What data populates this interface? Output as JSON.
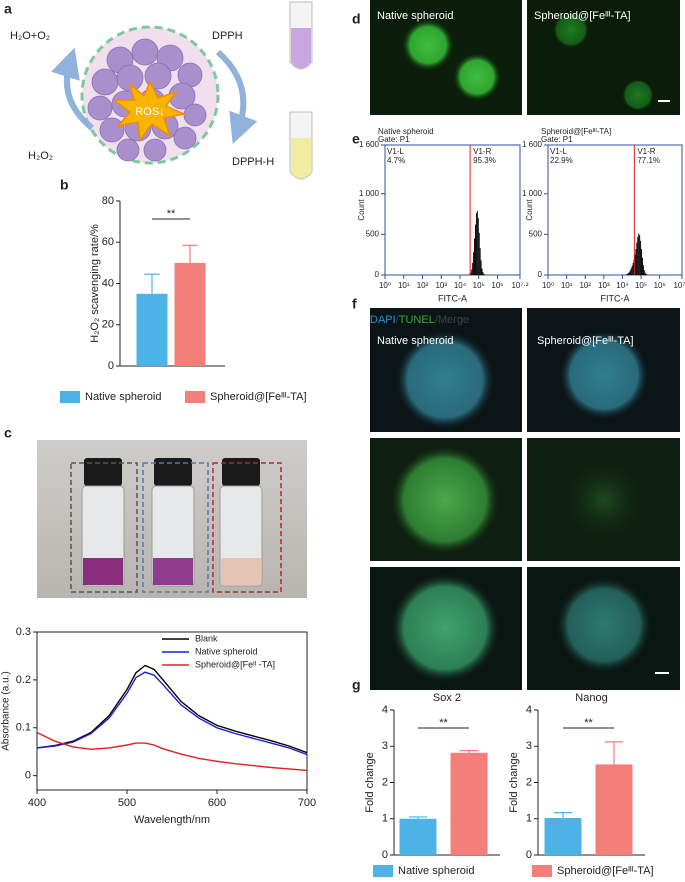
{
  "panel_labels": [
    "a",
    "b",
    "c",
    "d",
    "e",
    "f",
    "g"
  ],
  "panel_a": {
    "products": "H₂O+O₂",
    "reagent": "DPPH",
    "center": "ROS↓",
    "substrate": "H₂O₂",
    "reduced_reagent": "DPPH-H"
  },
  "panel_d": {
    "labels": [
      "Native spheroid",
      "Spheroid@[Feᴵᴵᴵ-TA]"
    ]
  },
  "panel_f": {
    "stain_parts": [
      "DAPI",
      "/",
      "TUNEL",
      "/Merge"
    ],
    "labels": [
      "Native spheroid",
      "Spheroid@[Feᴵᴵᴵ-TA]"
    ]
  },
  "chart_data": [
    {
      "type": "bar",
      "ylabel": "H₂O₂ scavenging rate/%",
      "ylim": [
        0,
        80
      ],
      "yticks": [
        0,
        20,
        40,
        60,
        80
      ],
      "series": [
        {
          "name": "Native spheroid",
          "color": "#4db3e6",
          "values": [
            35
          ],
          "errors": [
            9.5
          ]
        },
        {
          "name": "Spheroid@[Feᴵᴵᴵ-TA]",
          "color": "#f47f7a",
          "values": [
            50
          ],
          "errors": [
            8.5
          ]
        }
      ],
      "annotation": "**"
    },
    {
      "type": "line",
      "xlabel": "Wavelength/nm",
      "ylabel": "Absorbance (a.u.)",
      "xlim": [
        400,
        700
      ],
      "xticks": [
        400,
        500,
        600,
        700
      ],
      "ylim": [
        -0.03,
        0.3
      ],
      "yticks": [
        0,
        0.1,
        0.2,
        0.3
      ],
      "x": [
        400,
        420,
        440,
        460,
        480,
        500,
        510,
        520,
        530,
        540,
        560,
        580,
        600,
        620,
        640,
        660,
        680,
        700
      ],
      "series": [
        {
          "name": "Blank",
          "color": "#000000",
          "values": [
            0.058,
            0.063,
            0.072,
            0.09,
            0.125,
            0.18,
            0.215,
            0.23,
            0.222,
            0.2,
            0.155,
            0.125,
            0.105,
            0.093,
            0.083,
            0.073,
            0.062,
            0.048
          ]
        },
        {
          "name": "Native spheroid",
          "color": "#1f1fd6",
          "values": [
            0.058,
            0.062,
            0.07,
            0.088,
            0.12,
            0.172,
            0.205,
            0.216,
            0.21,
            0.19,
            0.148,
            0.12,
            0.1,
            0.088,
            0.078,
            0.068,
            0.058,
            0.044
          ]
        },
        {
          "name": "Spheroid@[Feᴵᴵ -TA]",
          "color": "#e0201e",
          "values": [
            0.09,
            0.072,
            0.06,
            0.055,
            0.058,
            0.064,
            0.068,
            0.068,
            0.064,
            0.056,
            0.045,
            0.036,
            0.03,
            0.025,
            0.021,
            0.017,
            0.014,
            0.011
          ]
        }
      ]
    },
    {
      "type": "histogram",
      "title": "Native spheroid",
      "subtitle": "Gate: P1",
      "xlabel": "FITC-A",
      "ylabel": "Count",
      "xscale": "log",
      "color": "#000000",
      "xlim": [
        1,
        15848932
      ],
      "xticks": [
        {
          "value": 1,
          "label": "10⁰"
        },
        {
          "value": 10,
          "label": "10¹"
        },
        {
          "value": 100,
          "label": "10²"
        },
        {
          "value": 1000,
          "label": "10³"
        },
        {
          "value": 10000,
          "label": "10⁴"
        },
        {
          "value": 100000,
          "label": "10⁵"
        },
        {
          "value": 1000000,
          "label": "10⁶"
        },
        {
          "value": 15848932,
          "label": "10⁷·²"
        }
      ],
      "ylim": [
        0,
        1600
      ],
      "yticks": [
        0,
        500,
        {
          "value": 1000,
          "label": "1 000"
        },
        {
          "value": 1600,
          "label": "1 600"
        }
      ],
      "gate": 34674,
      "gate_color": "#e0201e",
      "region_names": [
        "V1-L",
        "V1-R"
      ],
      "region_values": [
        4.7,
        95.3
      ],
      "region_value_labels": [
        "4.7%",
        "95.3%"
      ],
      "bins": [
        25119,
        28184,
        31623,
        35481,
        39811,
        44668,
        50119,
        56234,
        63096,
        70795,
        79433,
        89125,
        100000,
        112202,
        125893,
        141254,
        158489,
        177828,
        199526,
        223872,
        251189
      ],
      "values": [
        2,
        5,
        12,
        30,
        70,
        150,
        280,
        450,
        620,
        760,
        790,
        700,
        520,
        330,
        180,
        80,
        35,
        12,
        4,
        1
      ]
    },
    {
      "type": "histogram",
      "title": "Spheroid@[Feᴵᴵᴵ-TA]",
      "subtitle": "Gate: P1",
      "xlabel": "FITC-A",
      "ylabel": "Count",
      "xscale": "log",
      "color": "#000000",
      "xlim": [
        1,
        15848932
      ],
      "xticks": [
        {
          "value": 1,
          "label": "10⁰"
        },
        {
          "value": 10,
          "label": "10¹"
        },
        {
          "value": 100,
          "label": "10²"
        },
        {
          "value": 1000,
          "label": "10³"
        },
        {
          "value": 10000,
          "label": "10⁴"
        },
        {
          "value": 100000,
          "label": "10⁵"
        },
        {
          "value": 1000000,
          "label": "10⁶"
        },
        {
          "value": 15848932,
          "label": "10⁷·²"
        }
      ],
      "ylim": [
        0,
        1600
      ],
      "yticks": [
        0,
        500,
        {
          "value": 1000,
          "label": "1 000"
        },
        {
          "value": 1600,
          "label": "1 600"
        }
      ],
      "gate": 43652,
      "gate_color": "#e0201e",
      "region_names": [
        "V1-L",
        "V1-R"
      ],
      "region_values": [
        22.9,
        77.1
      ],
      "region_value_labels": [
        "22.9%",
        "77.1%"
      ],
      "bins": [
        15849,
        17783,
        19953,
        22387,
        25119,
        28184,
        31623,
        35481,
        39811,
        44668,
        50119,
        56234,
        63096,
        70795,
        79433,
        89125,
        100000,
        112202,
        125893,
        141254,
        158489,
        177828,
        199526,
        223872,
        251189
      ],
      "values": [
        8,
        15,
        25,
        40,
        60,
        85,
        115,
        150,
        195,
        250,
        320,
        400,
        470,
        510,
        490,
        420,
        320,
        210,
        120,
        60,
        28,
        12,
        5,
        2
      ]
    },
    {
      "type": "bar",
      "title": "Sox 2",
      "ylabel": "Fold change",
      "ylim": [
        0,
        4
      ],
      "yticks": [
        0,
        1,
        2,
        3,
        4
      ],
      "series": [
        {
          "name": "Native spheroid",
          "color": "#4db3e6",
          "values": [
            1.0
          ],
          "errors": [
            0.05
          ]
        },
        {
          "name": "Spheroid@[Feᴵᴵᴵ-TA]",
          "color": "#f47f7a",
          "values": [
            2.82
          ],
          "errors": [
            0.06
          ]
        }
      ],
      "annotation": "**"
    },
    {
      "type": "bar",
      "title": "Nanog",
      "ylabel": "Fold change",
      "ylim": [
        0,
        4
      ],
      "yticks": [
        0,
        1,
        2,
        3,
        4
      ],
      "series": [
        {
          "color": "#4db3e6",
          "values": [
            1.02
          ],
          "errors": [
            0.15
          ]
        },
        {
          "color": "#f47f7a",
          "values": [
            2.5
          ],
          "errors": [
            0.62
          ]
        }
      ],
      "annotation": "**"
    }
  ]
}
